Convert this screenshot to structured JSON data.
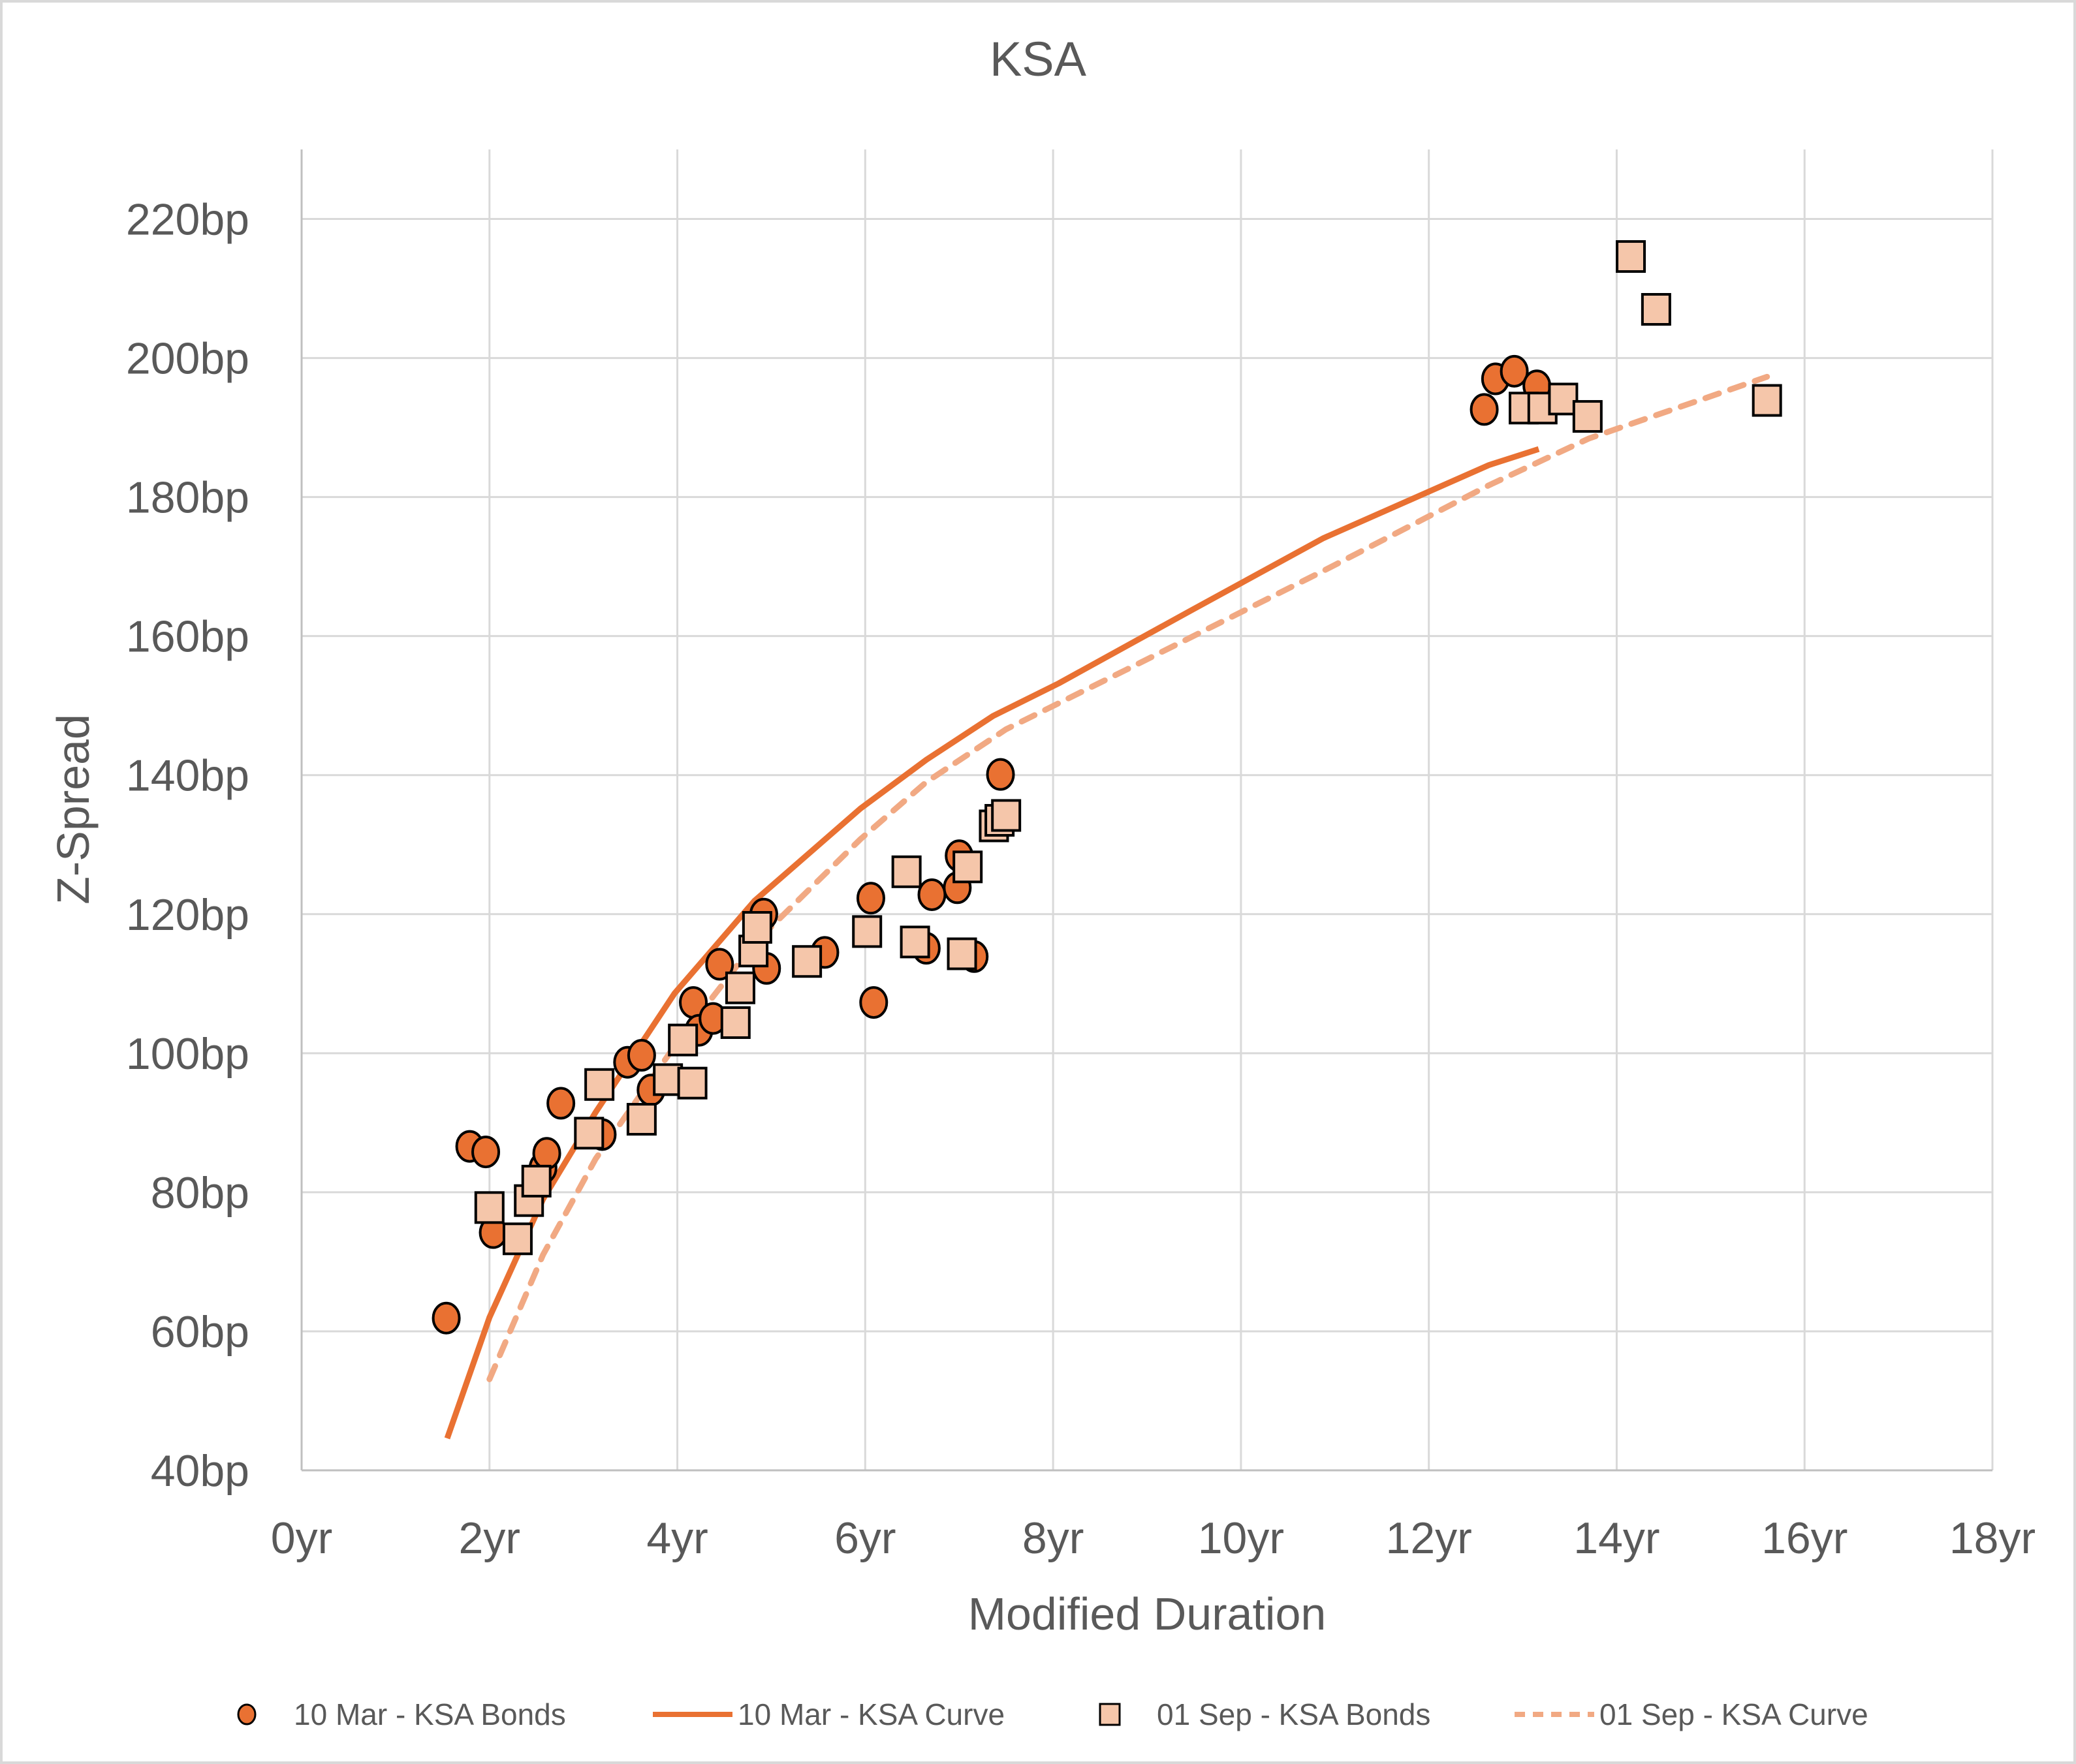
{
  "chart_data": {
    "type": "scatter",
    "title": "KSA",
    "xlabel": "Modified Duration",
    "ylabel": "Z-Spread",
    "xlim": [
      0,
      18
    ],
    "ylim": [
      40,
      230
    ],
    "x_ticks": [
      0,
      2,
      4,
      6,
      8,
      10,
      12,
      14,
      16,
      18
    ],
    "x_tick_labels": [
      "0yr",
      "2yr",
      "4yr",
      "6yr",
      "8yr",
      "10yr",
      "12yr",
      "14yr",
      "16yr",
      "18yr"
    ],
    "y_ticks": [
      40,
      60,
      80,
      100,
      120,
      140,
      160,
      180,
      200,
      220
    ],
    "y_tick_labels": [
      "40bp",
      "60bp",
      "80bp",
      "100bp",
      "120bp",
      "140bp",
      "160bp",
      "180bp",
      "200bp",
      "220bp"
    ],
    "grid": true,
    "legend_position": "bottom",
    "colors": {
      "mar": "#E97132",
      "sep": "#F5C6AA",
      "sep_curve": "#F1A983",
      "grid": "#D9D9D9",
      "marker_edge": "#000000"
    },
    "series": [
      {
        "name": "10 Mar - KSA Bonds",
        "kind": "markers",
        "marker": "circle",
        "points": [
          [
            1.54,
            61.9
          ],
          [
            1.79,
            86.6
          ],
          [
            1.96,
            85.8
          ],
          [
            2.04,
            74.2
          ],
          [
            2.57,
            83.5
          ],
          [
            2.61,
            85.6
          ],
          [
            2.76,
            92.8
          ],
          [
            3.2,
            88.3
          ],
          [
            3.47,
            98.7
          ],
          [
            3.62,
            99.7
          ],
          [
            3.72,
            94.7
          ],
          [
            4.17,
            107.3
          ],
          [
            4.23,
            103.3
          ],
          [
            4.38,
            105.0
          ],
          [
            4.45,
            112.8
          ],
          [
            4.92,
            120.0
          ],
          [
            4.95,
            112.2
          ],
          [
            5.57,
            114.5
          ],
          [
            6.06,
            122.3
          ],
          [
            6.09,
            107.3
          ],
          [
            6.65,
            115.1
          ],
          [
            6.71,
            122.8
          ],
          [
            6.98,
            123.8
          ],
          [
            7.0,
            128.4
          ],
          [
            7.16,
            113.9
          ],
          [
            7.44,
            140.1
          ],
          [
            12.59,
            192.6
          ],
          [
            12.71,
            197.0
          ],
          [
            12.91,
            198.1
          ],
          [
            13.15,
            196.0
          ]
        ]
      },
      {
        "name": "10 Mar - KSA Curve",
        "kind": "line",
        "dash": false,
        "points": [
          [
            1.55,
            44.6
          ],
          [
            2.0,
            62.0
          ],
          [
            2.57,
            79.0
          ],
          [
            3.13,
            91.5
          ],
          [
            3.97,
            108.6
          ],
          [
            4.82,
            121.9
          ],
          [
            5.95,
            135.2
          ],
          [
            6.65,
            142.2
          ],
          [
            7.36,
            148.5
          ],
          [
            8.06,
            153.2
          ],
          [
            9.47,
            163.7
          ],
          [
            10.88,
            174.1
          ],
          [
            12.64,
            184.6
          ],
          [
            13.17,
            186.9
          ]
        ]
      },
      {
        "name": "01 Sep - KSA Bonds",
        "kind": "markers",
        "marker": "square",
        "points": [
          [
            2.0,
            77.8
          ],
          [
            2.3,
            73.3
          ],
          [
            2.42,
            78.8
          ],
          [
            2.5,
            81.6
          ],
          [
            3.06,
            88.5
          ],
          [
            3.17,
            95.5
          ],
          [
            3.62,
            90.5
          ],
          [
            3.9,
            96.2
          ],
          [
            4.06,
            101.9
          ],
          [
            4.16,
            95.7
          ],
          [
            4.62,
            104.4
          ],
          [
            4.67,
            109.4
          ],
          [
            4.81,
            114.7
          ],
          [
            4.85,
            118.1
          ],
          [
            5.38,
            113.2
          ],
          [
            6.02,
            117.5
          ],
          [
            6.44,
            126.1
          ],
          [
            6.53,
            116.0
          ],
          [
            7.03,
            114.3
          ],
          [
            7.09,
            126.8
          ],
          [
            7.37,
            132.7
          ],
          [
            7.43,
            133.5
          ],
          [
            7.5,
            134.2
          ],
          [
            13.01,
            192.8
          ],
          [
            13.21,
            192.8
          ],
          [
            13.43,
            194.1
          ],
          [
            13.69,
            191.6
          ],
          [
            14.15,
            214.6
          ],
          [
            14.42,
            207.0
          ],
          [
            15.6,
            193.9
          ]
        ]
      },
      {
        "name": "01 Sep - KSA Curve",
        "kind": "line",
        "dash": true,
        "points": [
          [
            2.0,
            53.1
          ],
          [
            2.57,
            71.0
          ],
          [
            3.13,
            84.8
          ],
          [
            3.97,
            101.0
          ],
          [
            4.82,
            115.8
          ],
          [
            5.95,
            130.8
          ],
          [
            6.65,
            139.0
          ],
          [
            7.5,
            146.6
          ],
          [
            8.77,
            155.1
          ],
          [
            10.88,
            169.4
          ],
          [
            12.64,
            181.7
          ],
          [
            13.7,
            188.4
          ],
          [
            15.6,
            197.3
          ]
        ]
      }
    ]
  }
}
